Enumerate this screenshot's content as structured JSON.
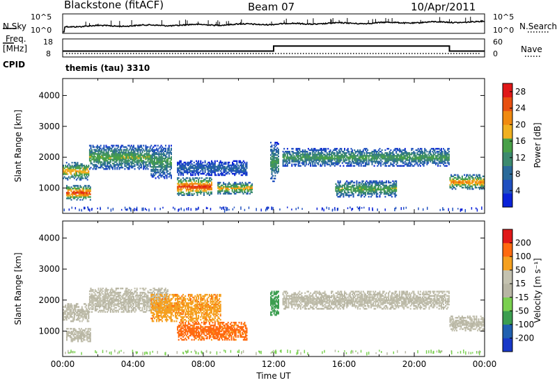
{
  "header": {
    "station": "Blackstone (fitACF)",
    "beam": "Beam 07",
    "date": "10/Apr/2011"
  },
  "noise_panel": {
    "left_label": "N.Sky",
    "right_label": "N.Search",
    "left_ticks": [
      "10^5",
      "10^0"
    ],
    "right_ticks": [
      "10^5",
      "10^0"
    ]
  },
  "freq_panel": {
    "left_label_line1": "Freq.",
    "left_label_line2": "[MHz]",
    "left_ticks": [
      "18",
      "8"
    ],
    "right_ticks": [
      "60",
      "0"
    ],
    "right_label": "Nave",
    "cpid_label": "CPID",
    "cpid_text": "themis (tau) 3310",
    "freq_steps": [
      {
        "t": 0,
        "v": 10.5
      },
      {
        "t": 12,
        "v": 10.5
      },
      {
        "t": 12,
        "v": 14.5
      },
      {
        "t": 22,
        "v": 14.5
      },
      {
        "t": 22,
        "v": 10.5
      },
      {
        "t": 24,
        "v": 10.5
      }
    ]
  },
  "colors": {
    "power": [
      "#0a22d8",
      "#2050c0",
      "#2a6a9a",
      "#3c8a6e",
      "#48a048",
      "#f0b020",
      "#f08a10",
      "#e85010",
      "#e01818"
    ],
    "velocity": [
      "#e01818",
      "#ff6a10",
      "#f5a020",
      "#c4c2b0",
      "#b8b6a4",
      "#7ad050",
      "#3c9e50",
      "#2060b0",
      "#1838c8"
    ]
  },
  "chart_data": [
    {
      "type": "heatmap",
      "name": "Power",
      "xlabel": "Time UT",
      "ylabel": "Slant Range [km]",
      "xlim": [
        "00:00",
        "24:00"
      ],
      "ylim": [
        180,
        4550
      ],
      "x_ticks": [
        "00:00",
        "04:00",
        "08:00",
        "12:00",
        "16:00",
        "20:00",
        "00:00"
      ],
      "y_ticks": [
        1000,
        2000,
        3000,
        4000
      ],
      "colorbar": {
        "label": "Power [dB]",
        "ticks": [
          4,
          8,
          12,
          16,
          20,
          24,
          28
        ],
        "range": [
          0,
          30
        ]
      },
      "bands": [
        {
          "t": [
            0.0,
            1.5
          ],
          "range": [
            1250,
            1850
          ],
          "level": 20
        },
        {
          "t": [
            0.2,
            1.6
          ],
          "range": [
            600,
            1100
          ],
          "level": 26
        },
        {
          "t": [
            1.5,
            5.0
          ],
          "range": [
            1600,
            2400
          ],
          "level": 16
        },
        {
          "t": [
            5.0,
            6.2
          ],
          "range": [
            1300,
            2400
          ],
          "level": 14
        },
        {
          "t": [
            6.5,
            8.5
          ],
          "range": [
            750,
            1350
          ],
          "level": 27
        },
        {
          "t": [
            6.5,
            10.5
          ],
          "range": [
            1400,
            1900
          ],
          "level": 8
        },
        {
          "t": [
            8.8,
            10.8
          ],
          "range": [
            800,
            1200
          ],
          "level": 20
        },
        {
          "t": [
            11.8,
            12.3
          ],
          "range": [
            1200,
            2500
          ],
          "level": 14
        },
        {
          "t": [
            12.5,
            22.0
          ],
          "range": [
            1700,
            2300
          ],
          "level": 14
        },
        {
          "t": [
            15.5,
            19.0
          ],
          "range": [
            700,
            1250
          ],
          "level": 16
        },
        {
          "t": [
            22.0,
            24.0
          ],
          "range": [
            950,
            1450
          ],
          "level": 22
        }
      ]
    },
    {
      "type": "heatmap",
      "name": "Velocity",
      "xlabel": "Time UT",
      "ylabel": "Slant Range [km]",
      "xlim": [
        "00:00",
        "24:00"
      ],
      "ylim": [
        180,
        4550
      ],
      "x_ticks": [
        "00:00",
        "04:00",
        "08:00",
        "12:00",
        "16:00",
        "20:00",
        "00:00"
      ],
      "y_ticks": [
        1000,
        2000,
        3000,
        4000
      ],
      "colorbar": {
        "label": "Velocity [m s⁻¹]",
        "ticks": [
          "200",
          "100",
          "50",
          "15",
          "-15",
          "-50",
          "-100",
          "-200"
        ]
      },
      "bands": [
        {
          "t": [
            0.0,
            1.5
          ],
          "range": [
            1300,
            1900
          ],
          "velocity": 0
        },
        {
          "t": [
            0.2,
            1.6
          ],
          "range": [
            650,
            1100
          ],
          "velocity": 0
        },
        {
          "t": [
            1.5,
            6.0
          ],
          "range": [
            1600,
            2400
          ],
          "velocity": 0
        },
        {
          "t": [
            5.0,
            9.0
          ],
          "range": [
            1300,
            2200
          ],
          "velocity": -70
        },
        {
          "t": [
            6.5,
            10.5
          ],
          "range": [
            700,
            1300
          ],
          "velocity": -80
        },
        {
          "t": [
            11.8,
            12.3
          ],
          "range": [
            1500,
            2300
          ],
          "velocity": 40
        },
        {
          "t": [
            12.5,
            22.0
          ],
          "range": [
            1700,
            2300
          ],
          "velocity": 0
        },
        {
          "t": [
            22.0,
            24.0
          ],
          "range": [
            1000,
            1500
          ],
          "velocity": 0
        }
      ]
    }
  ]
}
